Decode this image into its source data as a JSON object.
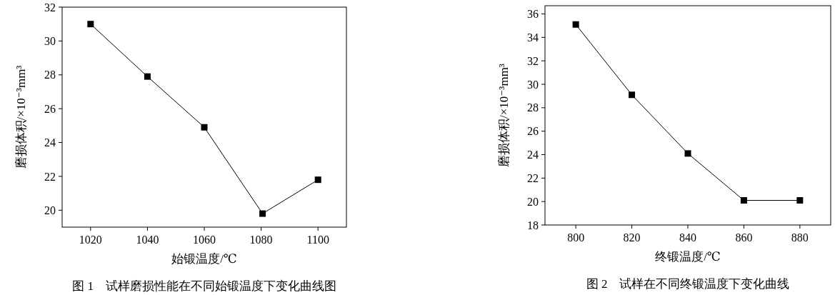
{
  "chart_data": [
    {
      "type": "line",
      "xlabel": "始锻温度/℃",
      "ylabel": "磨损体积/×10⁻³mm³",
      "x": [
        1020,
        1040,
        1060,
        1080.5,
        1100
      ],
      "series": [
        {
          "color": "#000000",
          "values": [
            31,
            27.9,
            24.9,
            19.8,
            21.8
          ]
        }
      ],
      "xlim": [
        1010,
        1110
      ],
      "xticks": [
        1020,
        1040,
        1060,
        1080,
        1100
      ],
      "ylim": [
        19,
        32
      ],
      "yticks": [
        20,
        22,
        24,
        26,
        28,
        30,
        32
      ],
      "marker": "square",
      "line_style": "solid",
      "grid": false,
      "annotations": [
        "图 1　试样磨损性能在不同始锻温度下变化曲线图"
      ]
    },
    {
      "type": "line",
      "xlabel": "终锻温度/℃",
      "ylabel": "磨损体积/×10⁻³mm³",
      "x": [
        800,
        820,
        840,
        860,
        880
      ],
      "series": [
        {
          "color": "#000000",
          "values": [
            35.1,
            29.1,
            24.1,
            20.1,
            20.1
          ]
        }
      ],
      "xlim": [
        789,
        891
      ],
      "xticks": [
        800,
        820,
        840,
        860,
        880
      ],
      "ylim": [
        18,
        36.7
      ],
      "yticks": [
        18,
        20,
        22,
        24,
        26,
        28,
        30,
        32,
        34,
        36
      ],
      "marker": "square",
      "line_style": "solid",
      "grid": false,
      "annotations": [
        "图 2　试样在不同终锻温度下变化曲线"
      ]
    }
  ]
}
